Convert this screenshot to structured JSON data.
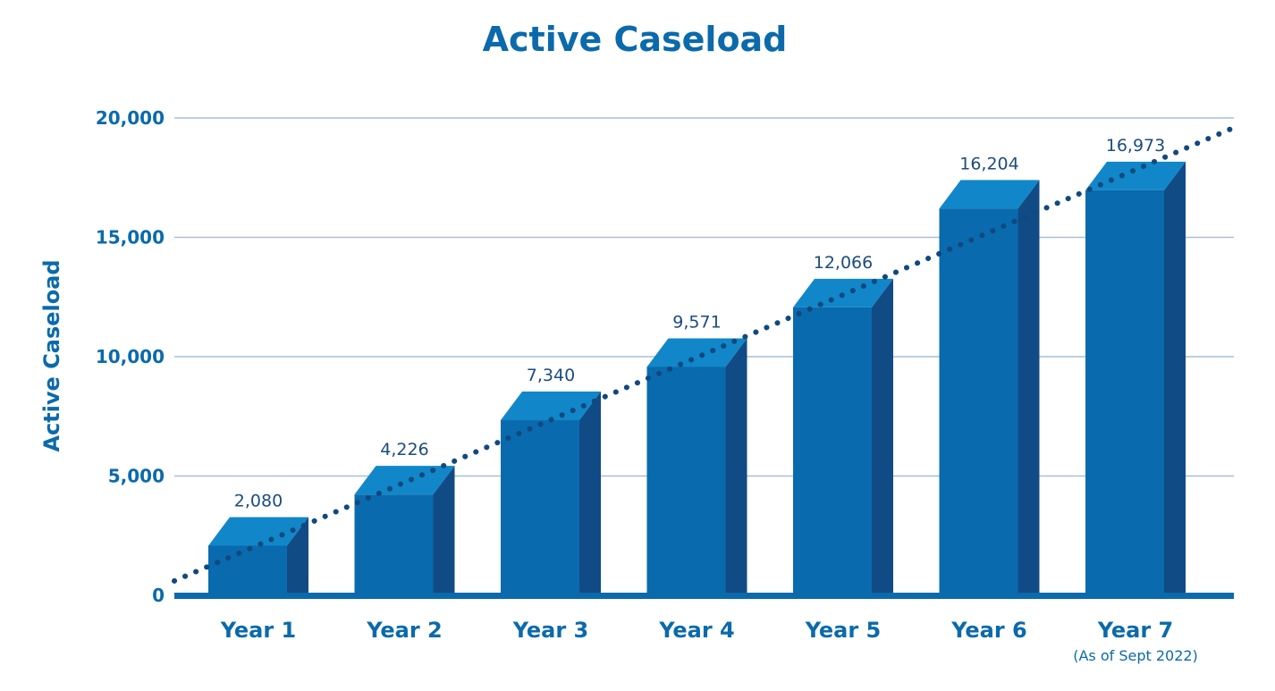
{
  "chart_data": {
    "type": "bar",
    "title": "Active Caseload",
    "ylabel": "Active Caseload",
    "xlabel": "",
    "ylim": [
      0,
      20000
    ],
    "yticks": [
      0,
      5000,
      10000,
      15000,
      20000
    ],
    "ytick_labels": [
      "0",
      "5,000",
      "10,000",
      "15,000",
      "20,000"
    ],
    "grid": true,
    "trendline": "dotted linear",
    "categories": [
      "Year 1",
      "Year 2",
      "Year 3",
      "Year 4",
      "Year 5",
      "Year 6",
      "Year 7"
    ],
    "category_notes": [
      "",
      "",
      "",
      "",
      "",
      "",
      "(As of Sept 2022)"
    ],
    "values": [
      2080,
      4226,
      7340,
      9571,
      12066,
      16204,
      16973
    ],
    "value_labels": [
      "2,080",
      "4,226",
      "7,340",
      "9,571",
      "12,066",
      "16,204",
      "16,973"
    ]
  },
  "colors": {
    "title": "#0b6aab",
    "axis_text": "#0b6aab",
    "gridline": "#a9bfd3",
    "baseline": "#0b6aab",
    "bar_front": "#0a6aae",
    "bar_top": "#1187c9",
    "bar_side": "#114b86",
    "data_label": "#1b4d7e",
    "trendline": "#11497f"
  }
}
